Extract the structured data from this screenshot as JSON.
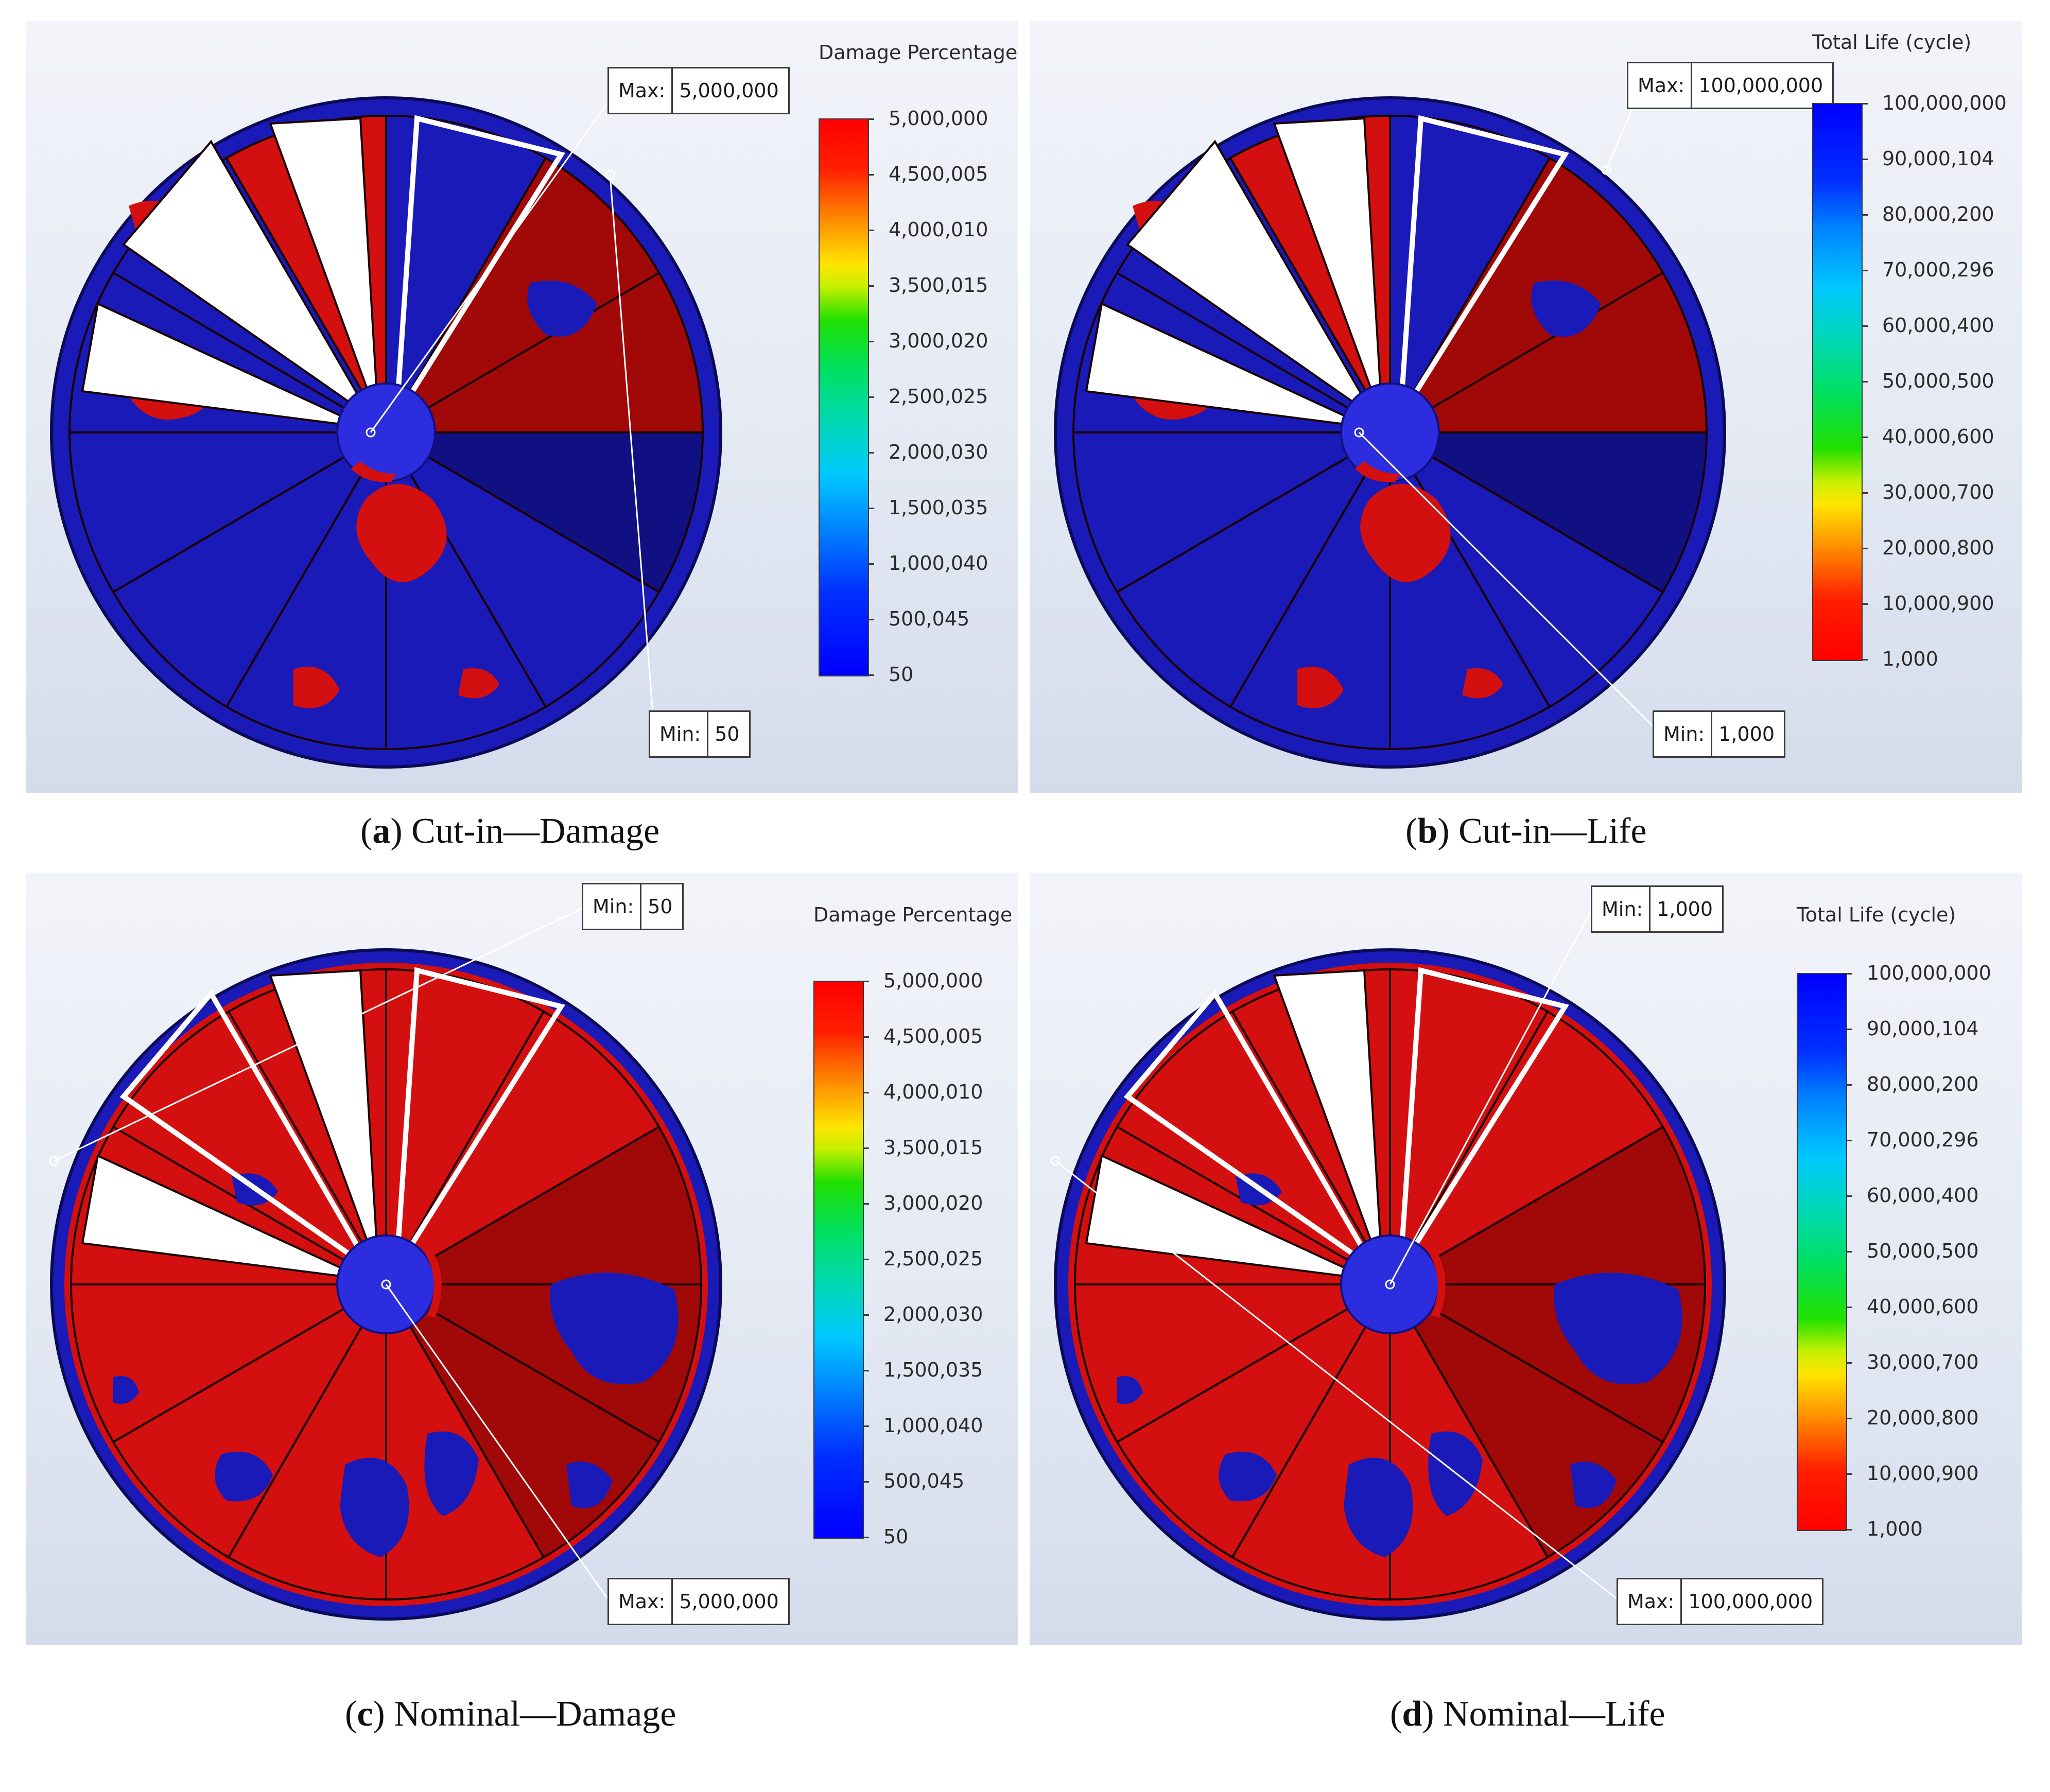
{
  "panels": [
    {
      "id": "a",
      "letter": "a",
      "caption": "Cut-in—Damage",
      "scale": {
        "title": "Damage Percentage",
        "kind": "damage",
        "ticks": [
          "5,000,000",
          "4,500,005",
          "4,000,010",
          "3,500,015",
          "3,000,020",
          "2,500,025",
          "2,000,030",
          "1,500,035",
          "1,000,040",
          "500,045",
          "50"
        ]
      },
      "callouts": {
        "max": {
          "label": "Max:",
          "value": "5,000,000"
        },
        "min": {
          "label": "Min:",
          "value": "50"
        }
      }
    },
    {
      "id": "b",
      "letter": "b",
      "caption": "Cut-in—Life",
      "scale": {
        "title": "Total Life (cycle)",
        "kind": "life",
        "ticks": [
          "100,000,000",
          "90,000,104",
          "80,000,200",
          "70,000,296",
          "60,000,400",
          "50,000,500",
          "40,000,600",
          "30,000,700",
          "20,000,800",
          "10,000,900",
          "1,000"
        ]
      },
      "callouts": {
        "max": {
          "label": "Max:",
          "value": "100,000,000"
        },
        "min": {
          "label": "Min:",
          "value": "1,000"
        }
      }
    },
    {
      "id": "c",
      "letter": "c",
      "caption": "Nominal—Damage",
      "scale": {
        "title": "Damage Percentage",
        "kind": "damage",
        "ticks": [
          "5,000,000",
          "4,500,005",
          "4,000,010",
          "3,500,015",
          "3,000,020",
          "2,500,025",
          "2,000,030",
          "1,500,035",
          "1,000,040",
          "500,045",
          "50"
        ]
      },
      "callouts": {
        "min": {
          "label": "Min:",
          "value": "50"
        },
        "max": {
          "label": "Max:",
          "value": "5,000,000"
        }
      }
    },
    {
      "id": "d",
      "letter": "d",
      "caption": "Nominal—Life",
      "scale": {
        "title": "Total Life (cycle)",
        "kind": "life",
        "ticks": [
          "100,000,000",
          "90,000,104",
          "80,000,200",
          "70,000,296",
          "60,000,400",
          "50,000,500",
          "40,000,600",
          "30,000,700",
          "20,000,800",
          "10,000,900",
          "1,000"
        ]
      },
      "callouts": {
        "min": {
          "label": "Min:",
          "value": "1,000"
        },
        "max": {
          "label": "Max:",
          "value": "100,000,000"
        }
      }
    }
  ],
  "colors": {
    "red": "#d40f0f",
    "dark_red": "#a10808",
    "blue": "#1a1ab8",
    "dark_blue": "#101083",
    "hub": "#2d2de0",
    "outline": "#1a0000"
  }
}
